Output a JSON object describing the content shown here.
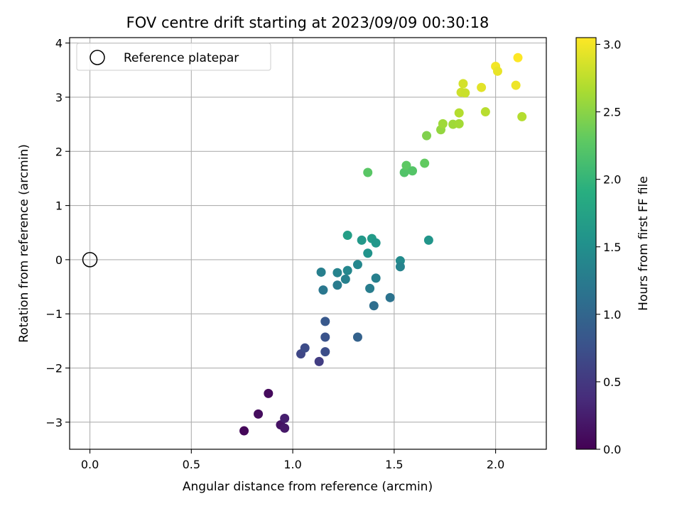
{
  "chart_data": {
    "type": "scatter",
    "title": "FOV centre drift starting at 2023/09/09 00:30:18",
    "xlabel": "Angular distance from reference (arcmin)",
    "ylabel": "Rotation from reference (arcmin)",
    "xlim": [
      -0.1,
      2.25
    ],
    "ylim": [
      -3.5,
      4.1
    ],
    "xticks": [
      0.0,
      0.5,
      1.0,
      1.5,
      2.0
    ],
    "xtick_labels": [
      "0.0",
      "0.5",
      "1.0",
      "1.5",
      "2.0"
    ],
    "yticks": [
      -3,
      -2,
      -1,
      0,
      1,
      2,
      3,
      4
    ],
    "ytick_labels": [
      "−3",
      "−2",
      "−1",
      "0",
      "1",
      "2",
      "3",
      "4"
    ],
    "grid": true,
    "legend": {
      "position": "top-left",
      "entries": [
        "Reference platepar"
      ]
    },
    "reference_point": {
      "x": 0.0,
      "y": 0.0
    },
    "colorbar": {
      "label": "Hours from first FF file",
      "range": [
        0.0,
        3.05
      ],
      "ticks": [
        0.0,
        0.5,
        1.0,
        1.5,
        2.0,
        2.5,
        3.0
      ],
      "tick_labels": [
        "0.0",
        "0.5",
        "1.0",
        "1.5",
        "2.0",
        "2.5",
        "3.0"
      ],
      "colormap": "viridis"
    },
    "points": [
      {
        "x": 0.76,
        "y": -3.16,
        "c": 0.05
      },
      {
        "x": 0.83,
        "y": -2.85,
        "c": 0.1
      },
      {
        "x": 0.88,
        "y": -2.47,
        "c": 0.08
      },
      {
        "x": 0.94,
        "y": -3.05,
        "c": 0.15
      },
      {
        "x": 0.96,
        "y": -3.11,
        "c": 0.2
      },
      {
        "x": 0.96,
        "y": -2.93,
        "c": 0.25
      },
      {
        "x": 1.04,
        "y": -1.74,
        "c": 0.65
      },
      {
        "x": 1.06,
        "y": -1.63,
        "c": 0.7
      },
      {
        "x": 1.13,
        "y": -1.88,
        "c": 0.55
      },
      {
        "x": 1.16,
        "y": -1.14,
        "c": 0.85
      },
      {
        "x": 1.16,
        "y": -1.43,
        "c": 0.78
      },
      {
        "x": 1.16,
        "y": -1.7,
        "c": 0.72
      },
      {
        "x": 1.32,
        "y": -1.43,
        "c": 0.95
      },
      {
        "x": 1.14,
        "y": -0.23,
        "c": 1.3
      },
      {
        "x": 1.15,
        "y": -0.56,
        "c": 1.2
      },
      {
        "x": 1.22,
        "y": -0.24,
        "c": 1.35
      },
      {
        "x": 1.22,
        "y": -0.47,
        "c": 1.25
      },
      {
        "x": 1.26,
        "y": -0.36,
        "c": 1.32
      },
      {
        "x": 1.27,
        "y": -0.2,
        "c": 1.4
      },
      {
        "x": 1.27,
        "y": 0.45,
        "c": 1.7
      },
      {
        "x": 1.32,
        "y": -0.09,
        "c": 1.4
      },
      {
        "x": 1.34,
        "y": 0.36,
        "c": 1.62
      },
      {
        "x": 1.37,
        "y": 0.12,
        "c": 1.55
      },
      {
        "x": 1.38,
        "y": -0.53,
        "c": 1.28
      },
      {
        "x": 1.39,
        "y": 0.39,
        "c": 1.65
      },
      {
        "x": 1.41,
        "y": 0.31,
        "c": 1.6
      },
      {
        "x": 1.41,
        "y": -0.34,
        "c": 1.3
      },
      {
        "x": 1.4,
        "y": -0.85,
        "c": 1.1
      },
      {
        "x": 1.48,
        "y": -0.7,
        "c": 1.15
      },
      {
        "x": 1.53,
        "y": -0.02,
        "c": 1.45
      },
      {
        "x": 1.53,
        "y": -0.13,
        "c": 1.35
      },
      {
        "x": 1.67,
        "y": 0.36,
        "c": 1.58
      },
      {
        "x": 1.37,
        "y": 1.61,
        "c": 2.25
      },
      {
        "x": 1.55,
        "y": 1.61,
        "c": 2.2
      },
      {
        "x": 1.56,
        "y": 1.74,
        "c": 2.28
      },
      {
        "x": 1.59,
        "y": 1.64,
        "c": 2.22
      },
      {
        "x": 1.65,
        "y": 1.78,
        "c": 2.3
      },
      {
        "x": 1.66,
        "y": 2.29,
        "c": 2.45
      },
      {
        "x": 1.73,
        "y": 2.4,
        "c": 2.55
      },
      {
        "x": 1.74,
        "y": 2.51,
        "c": 2.6
      },
      {
        "x": 1.79,
        "y": 2.5,
        "c": 2.6
      },
      {
        "x": 1.82,
        "y": 2.51,
        "c": 2.62
      },
      {
        "x": 1.82,
        "y": 2.71,
        "c": 2.7
      },
      {
        "x": 1.83,
        "y": 3.09,
        "c": 2.82
      },
      {
        "x": 1.84,
        "y": 3.25,
        "c": 2.85
      },
      {
        "x": 1.85,
        "y": 3.08,
        "c": 2.8
      },
      {
        "x": 1.93,
        "y": 3.18,
        "c": 2.92
      },
      {
        "x": 1.95,
        "y": 2.73,
        "c": 2.72
      },
      {
        "x": 2.0,
        "y": 3.57,
        "c": 3.0
      },
      {
        "x": 2.01,
        "y": 3.48,
        "c": 2.95
      },
      {
        "x": 2.1,
        "y": 3.22,
        "c": 2.98
      },
      {
        "x": 2.11,
        "y": 3.73,
        "c": 3.05
      },
      {
        "x": 2.13,
        "y": 2.64,
        "c": 2.7
      }
    ]
  }
}
